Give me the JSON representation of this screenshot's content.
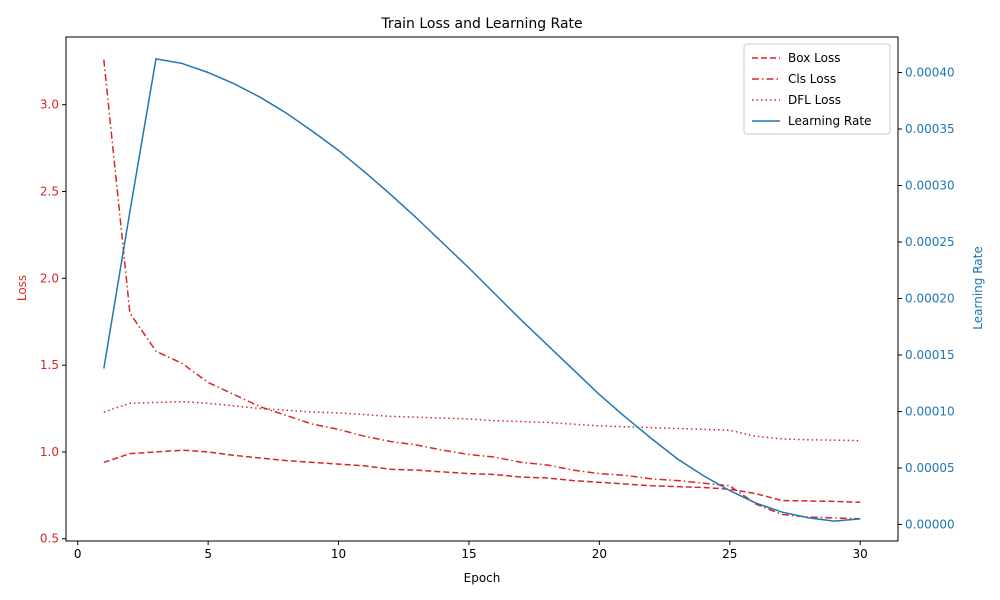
{
  "chart_data": {
    "type": "line",
    "title": "Train Loss and Learning Rate",
    "xlabel": "Epoch",
    "ylabel_left": "Loss",
    "ylabel_right": "Learning Rate",
    "xlim": [
      -0.45,
      31.45
    ],
    "ylim_left": [
      0.487,
      3.39
    ],
    "ylim_right": [
      -1.46e-05,
      0.0004314
    ],
    "x_ticks": [
      0,
      5,
      10,
      15,
      20,
      25,
      30
    ],
    "x_tick_labels": [
      "0",
      "5",
      "10",
      "15",
      "20",
      "25",
      "30"
    ],
    "y_left_ticks": [
      0.5,
      1.0,
      1.5,
      2.0,
      2.5,
      3.0
    ],
    "y_left_tick_labels": [
      "0.5",
      "1.0",
      "1.5",
      "2.0",
      "2.5",
      "3.0"
    ],
    "y_right_ticks": [
      0,
      5e-05,
      0.0001,
      0.00015,
      0.0002,
      0.00025,
      0.0003,
      0.00035,
      0.0004
    ],
    "y_right_tick_labels": [
      "0.00000",
      "0.00005",
      "0.00010",
      "0.00015",
      "0.00020",
      "0.00025",
      "0.00030",
      "0.00035",
      "0.00040"
    ],
    "left_axis_color": "#d62728",
    "right_axis_color": "#1f77b4",
    "grid": false,
    "legend_position": "top-right",
    "x": [
      1,
      2,
      3,
      4,
      5,
      6,
      7,
      8,
      9,
      10,
      11,
      12,
      13,
      14,
      15,
      16,
      17,
      18,
      19,
      20,
      21,
      22,
      23,
      24,
      25,
      26,
      27,
      28,
      29,
      30
    ],
    "series": [
      {
        "name": "Box Loss",
        "axis": "left",
        "color": "#d62728",
        "dash": "dashed",
        "values": [
          0.94,
          0.99,
          1.0,
          1.01,
          1.0,
          0.98,
          0.965,
          0.95,
          0.94,
          0.93,
          0.92,
          0.9,
          0.895,
          0.885,
          0.875,
          0.87,
          0.855,
          0.85,
          0.835,
          0.825,
          0.815,
          0.805,
          0.8,
          0.795,
          0.785,
          0.76,
          0.72,
          0.718,
          0.715,
          0.71
        ]
      },
      {
        "name": "Cls Loss",
        "axis": "left",
        "color": "#d62728",
        "dash": "dashdot",
        "values": [
          3.26,
          1.8,
          1.58,
          1.51,
          1.4,
          1.33,
          1.26,
          1.21,
          1.16,
          1.13,
          1.09,
          1.06,
          1.04,
          1.01,
          0.985,
          0.97,
          0.94,
          0.925,
          0.895,
          0.875,
          0.865,
          0.845,
          0.835,
          0.82,
          0.805,
          0.7,
          0.64,
          0.625,
          0.62,
          0.615
        ]
      },
      {
        "name": "DFL Loss",
        "axis": "left",
        "color": "#d62728",
        "dash": "dotted",
        "values": [
          1.23,
          1.28,
          1.285,
          1.29,
          1.28,
          1.265,
          1.25,
          1.24,
          1.23,
          1.225,
          1.215,
          1.205,
          1.2,
          1.195,
          1.19,
          1.18,
          1.175,
          1.17,
          1.16,
          1.15,
          1.145,
          1.14,
          1.135,
          1.13,
          1.125,
          1.09,
          1.075,
          1.07,
          1.068,
          1.065
        ]
      },
      {
        "name": "Learning Rate",
        "axis": "right",
        "color": "#1f77b4",
        "dash": "solid",
        "values": [
          0.000138,
          0.000277,
          0.000412,
          0.000408,
          0.0004,
          0.00039,
          0.000378,
          0.000364,
          0.000348,
          0.000331,
          0.000312,
          0.000292,
          0.000271,
          0.000249,
          0.000227,
          0.000204,
          0.000181,
          0.000159,
          0.000137,
          0.000115,
          9.5e-05,
          7.6e-05,
          5.8e-05,
          4.3e-05,
          3e-05,
          1.9e-05,
          1.1e-05,
          6e-06,
          3e-06,
          5e-06
        ]
      }
    ]
  }
}
